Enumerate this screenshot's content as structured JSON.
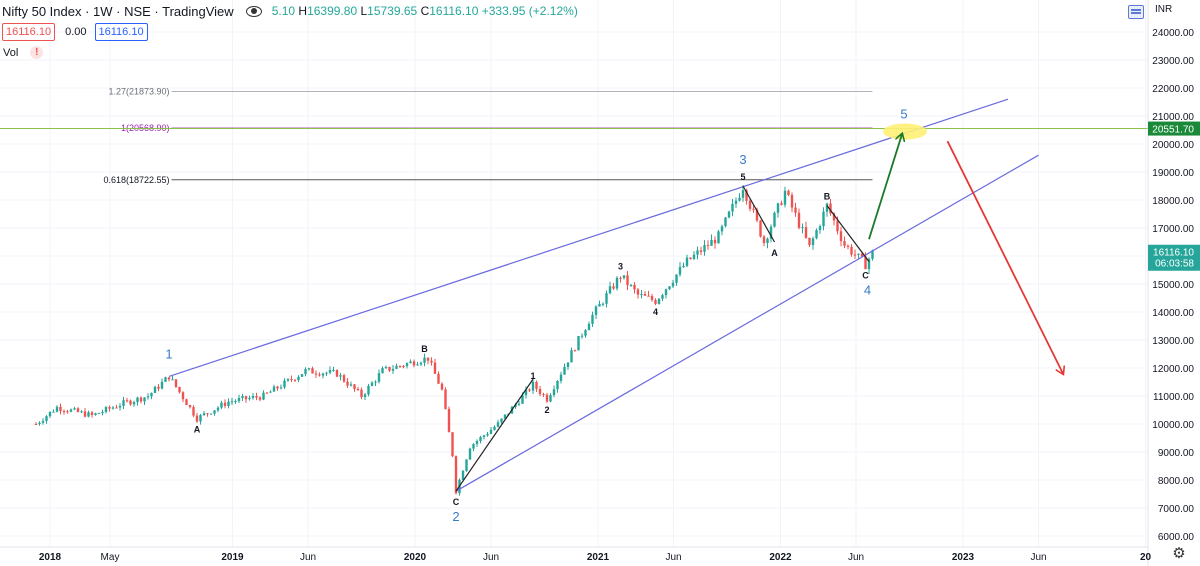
{
  "header": {
    "symbol": "Nifty 50 Index · 1W · NSE · TradingView",
    "ohlc_text": "5.10",
    "high_label": "H",
    "high": "16399.80",
    "low_label": "L",
    "low": "15739.65",
    "close_label": "C",
    "close": "16116.10",
    "change": "+333.95 (+2.12%)",
    "bid": "16116.10",
    "spread": "0.00",
    "ask": "16116.10",
    "vol_label": "Vol",
    "warning_glyph": "!"
  },
  "colors": {
    "up": "#26a69a",
    "down": "#ef5350",
    "channel": "#6a6ae0",
    "fib": "#9c27b0",
    "target_line": "#8bc34a",
    "green_arrow": "#1b7a2a",
    "red_arrow": "#e53935",
    "target_highlight": "#fff176"
  },
  "chart_data": {
    "type": "candlestick",
    "currency": "INR",
    "ylim": [
      5900,
      24900
    ],
    "y_ticks": [
      "24000.00",
      "23000.00",
      "22000.00",
      "21000.00",
      "20000.00",
      "19000.00",
      "18000.00",
      "17000.00",
      "16000.00",
      "15000.00",
      "14000.00",
      "13000.00",
      "12000.00",
      "11000.00",
      "10000.00",
      "9000.00",
      "8000.00",
      "7000.00",
      "6000.00"
    ],
    "x_tick_labels": [
      "2018",
      "May",
      "2019",
      "Jun",
      "2020",
      "Jun",
      "2021",
      "Jun",
      "2022",
      "Jun",
      "2023",
      "Jun",
      "20"
    ],
    "close_path": [
      [
        "2017-12-04",
        10000
      ],
      [
        "2018-01-15",
        10600
      ],
      [
        "2018-03-26",
        10300
      ],
      [
        "2018-05-21",
        10700
      ],
      [
        "2018-07-16",
        11000
      ],
      [
        "2018-08-27",
        11700
      ],
      [
        "2018-10-22",
        10200
      ],
      [
        "2018-12-24",
        10800
      ],
      [
        "2019-03-04",
        11000
      ],
      [
        "2019-05-27",
        11900
      ],
      [
        "2019-07-29",
        11800
      ],
      [
        "2019-09-16",
        11000
      ],
      [
        "2019-10-28",
        11900
      ],
      [
        "2020-01-13",
        12300
      ],
      [
        "2020-01-27",
        12350
      ],
      [
        "2020-02-24",
        11200
      ],
      [
        "2020-03-16",
        8900
      ],
      [
        "2020-03-23",
        7600
      ],
      [
        "2020-04-20",
        9200
      ],
      [
        "2020-06-15",
        10000
      ],
      [
        "2020-08-24",
        11400
      ],
      [
        "2020-09-21",
        10900
      ],
      [
        "2020-12-14",
        13700
      ],
      [
        "2021-02-15",
        15300
      ],
      [
        "2021-03-22",
        14600
      ],
      [
        "2021-04-26",
        14400
      ],
      [
        "2021-06-28",
        15800
      ],
      [
        "2021-08-30",
        16700
      ],
      [
        "2021-10-18",
        18500
      ],
      [
        "2021-11-29",
        16500
      ],
      [
        "2022-01-10",
        18300
      ],
      [
        "2022-02-28",
        16300
      ],
      [
        "2022-04-04",
        17800
      ],
      [
        "2022-05-09",
        16400
      ],
      [
        "2022-06-20",
        15700
      ],
      [
        "2022-07-04",
        16116
      ]
    ],
    "last_price": "16116.10",
    "countdown": "06:03:58",
    "target_price": "20551.70",
    "fib_levels": [
      {
        "label": "1.27(21873.90)",
        "value": 21873.9
      },
      {
        "label": "1(20568.90)",
        "value": 20568.9
      },
      {
        "label": "0.618(18722.55)",
        "value": 18722.55
      }
    ],
    "major_waves": [
      {
        "label": "1",
        "date": "2018-08-27",
        "value": 11700
      },
      {
        "label": "2",
        "date": "2020-03-23",
        "value": 7600
      },
      {
        "label": "3",
        "date": "2021-10-18",
        "value": 18500
      },
      {
        "label": "4",
        "date": "2022-06-20",
        "value": 15700
      },
      {
        "label": "5",
        "date": "2022-09-05",
        "value": 20551.7
      }
    ],
    "minor_waves": [
      {
        "label": "A",
        "date": "2018-10-22",
        "value": 10200
      },
      {
        "label": "B",
        "date": "2020-01-20",
        "value": 12350
      },
      {
        "label": "C",
        "date": "2020-03-23",
        "value": 7600
      },
      {
        "label": "1",
        "date": "2020-08-24",
        "value": 11400
      },
      {
        "label": "2",
        "date": "2020-09-21",
        "value": 10900
      },
      {
        "label": "3",
        "date": "2021-02-15",
        "value": 15300
      },
      {
        "label": "4",
        "date": "2021-04-26",
        "value": 14400
      },
      {
        "label": "5",
        "date": "2021-10-18",
        "value": 18500
      },
      {
        "label": "A",
        "date": "2021-12-20",
        "value": 16500
      },
      {
        "label": "B",
        "date": "2022-04-04",
        "value": 17800
      },
      {
        "label": "C",
        "date": "2022-06-20",
        "value": 15700
      }
    ],
    "channel_lines": [
      {
        "from": [
          "2018-08-27",
          11700
        ],
        "to": [
          "2023-04-01",
          21600
        ]
      },
      {
        "from": [
          "2020-03-23",
          7600
        ],
        "to": [
          "2023-06-01",
          19600
        ]
      }
    ],
    "arrows": [
      {
        "color": "green",
        "from": [
          "2022-06-27",
          16600
        ],
        "to": [
          "2022-09-01",
          20350
        ]
      },
      {
        "color": "red",
        "from": [
          "2022-12-01",
          20100
        ],
        "to": [
          "2023-07-20",
          11800
        ]
      }
    ]
  }
}
